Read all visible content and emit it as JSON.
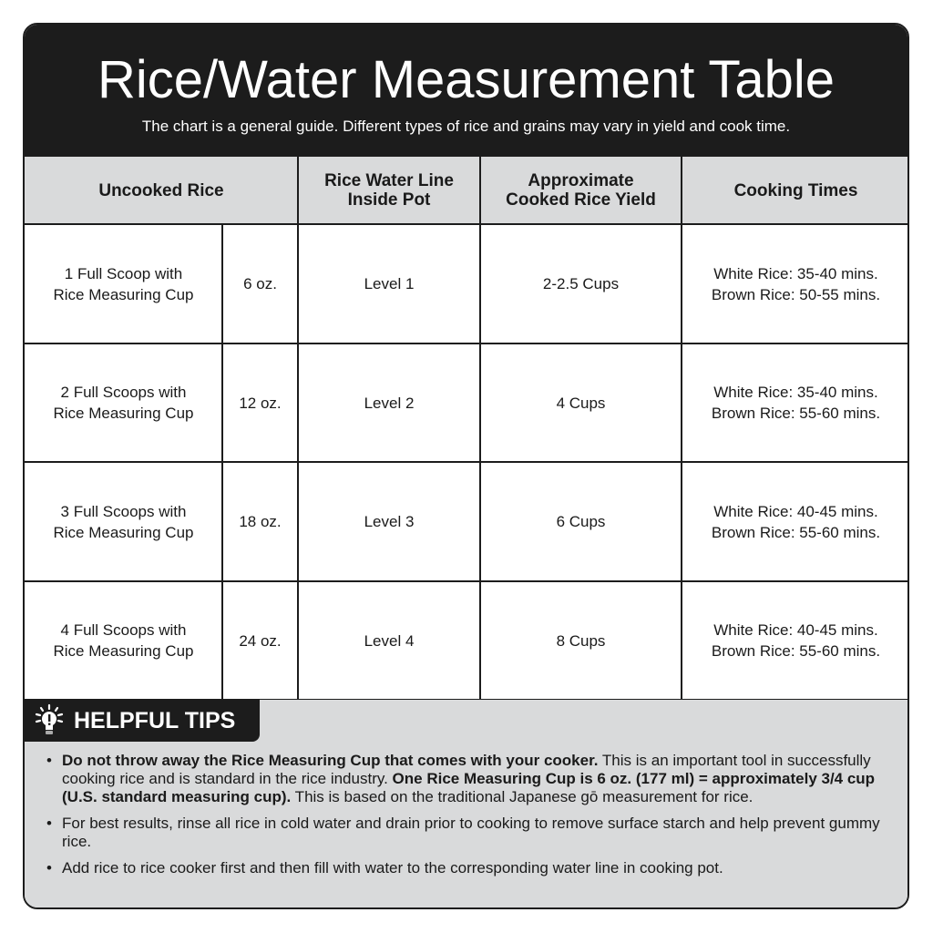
{
  "header": {
    "title": "Rice/Water Measurement Table",
    "subtitle": "The chart is a general guide. Different types of rice and grains may vary in yield and cook time."
  },
  "table": {
    "columns": [
      "Uncooked Rice",
      "Rice Water Line\nInside Pot",
      "Approximate\nCooked Rice Yield",
      "Cooking Times"
    ],
    "rows": [
      {
        "scoops": "1 Full Scoop with\nRice Measuring Cup",
        "weight": "6 oz.",
        "water_line": "Level 1",
        "yield": "2-2.5 Cups",
        "times": "White Rice: 35-40 mins.\nBrown Rice: 50-55 mins."
      },
      {
        "scoops": "2 Full Scoops with\nRice Measuring Cup",
        "weight": "12 oz.",
        "water_line": "Level 2",
        "yield": "4 Cups",
        "times": "White Rice: 35-40 mins.\nBrown Rice: 55-60 mins."
      },
      {
        "scoops": "3 Full Scoops with\nRice Measuring Cup",
        "weight": "18 oz.",
        "water_line": "Level 3",
        "yield": "6 Cups",
        "times": "White Rice: 40-45 mins.\nBrown Rice: 55-60 mins."
      },
      {
        "scoops": "4 Full Scoops with\nRice Measuring Cup",
        "weight": "24 oz.",
        "water_line": "Level 4",
        "yield": "8 Cups",
        "times": "White Rice: 40-45 mins.\nBrown Rice: 55-60 mins."
      }
    ]
  },
  "tips": {
    "heading": "HELPFUL TIPS",
    "icon": "lightbulb-icon",
    "items": [
      [
        {
          "text": "Do not throw away the Rice Measuring Cup that comes with your cooker.",
          "bold": true
        },
        {
          "text": " This is an important tool in successfully cooking rice and is standard in the rice industry. ",
          "bold": false
        },
        {
          "text": "One Rice Measuring Cup is 6 oz. (177 ml) = approximately 3/4 cup (U.S. standard measuring cup).",
          "bold": true
        },
        {
          "text": " This is based on the traditional Japanese gō measurement for rice.",
          "bold": false
        }
      ],
      [
        {
          "text": "For best results, rinse all rice in cold water and drain prior to cooking to remove surface starch and help prevent gummy rice.",
          "bold": false
        }
      ],
      [
        {
          "text": "Add rice to rice cooker first and then fill with water to the corresponding water line in cooking pot.",
          "bold": false
        }
      ]
    ]
  },
  "colors": {
    "dark": "#1c1c1c",
    "header_gray": "#d9dadb",
    "white": "#ffffff"
  }
}
